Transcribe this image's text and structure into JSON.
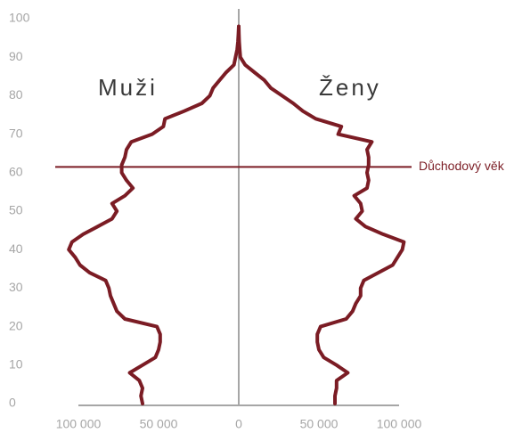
{
  "chart_data": {
    "type": "pyramid",
    "y": [
      0,
      2,
      4,
      6,
      8,
      10,
      12,
      14,
      16,
      18,
      20,
      22,
      24,
      26,
      28,
      30,
      32,
      34,
      36,
      38,
      40,
      42,
      44,
      46,
      48,
      50,
      52,
      54,
      56,
      58,
      60,
      62,
      64,
      66,
      68,
      70,
      72,
      74,
      76,
      78,
      80,
      82,
      84,
      86,
      88,
      90,
      92,
      94,
      96,
      98
    ],
    "series": [
      {
        "name": "Muži",
        "color": "#7b1c24",
        "values": [
          -60000,
          -61000,
          -60000,
          -62000,
          -68000,
          -60000,
          -52000,
          -50000,
          -49000,
          -49000,
          -51000,
          -71000,
          -76000,
          -78000,
          -80000,
          -81000,
          -83000,
          -93000,
          -99000,
          -102000,
          -106000,
          -104000,
          -97000,
          -88000,
          -79000,
          -76000,
          -79000,
          -71000,
          -66000,
          -70000,
          -73000,
          -73000,
          -71000,
          -70000,
          -67000,
          -54000,
          -47000,
          -46000,
          -34000,
          -23000,
          -18000,
          -16000,
          -12000,
          -8000,
          -3000,
          -2000,
          -1000,
          -500,
          -200,
          0
        ]
      },
      {
        "name": "Ženy",
        "color": "#7b1c24",
        "values": [
          60000,
          60000,
          61000,
          61000,
          68000,
          61000,
          53000,
          50000,
          49000,
          49000,
          51000,
          67000,
          71000,
          73000,
          76000,
          76000,
          78000,
          87000,
          96000,
          99000,
          102000,
          103000,
          90000,
          79000,
          73000,
          77000,
          76000,
          72000,
          80000,
          81000,
          80000,
          81000,
          81000,
          80000,
          83000,
          62000,
          64000,
          48000,
          40000,
          34000,
          27000,
          20000,
          16000,
          10000,
          4000,
          1000,
          600,
          300,
          100,
          0
        ]
      }
    ],
    "xlim": [
      -100000,
      100000
    ],
    "xticks": [
      {
        "value": -100000,
        "label": "100 000"
      },
      {
        "value": -50000,
        "label": "50 000"
      },
      0,
      {
        "value": 50000,
        "label": "50 000"
      },
      {
        "value": 100000,
        "label": "100 000"
      }
    ],
    "ylim": [
      0,
      100
    ],
    "yticks": [
      0,
      10,
      20,
      30,
      40,
      50,
      60,
      70,
      80,
      90,
      100
    ],
    "reference_line": {
      "value": 61.5,
      "label": "Důchodový věk",
      "color": "#7b1c24"
    }
  }
}
